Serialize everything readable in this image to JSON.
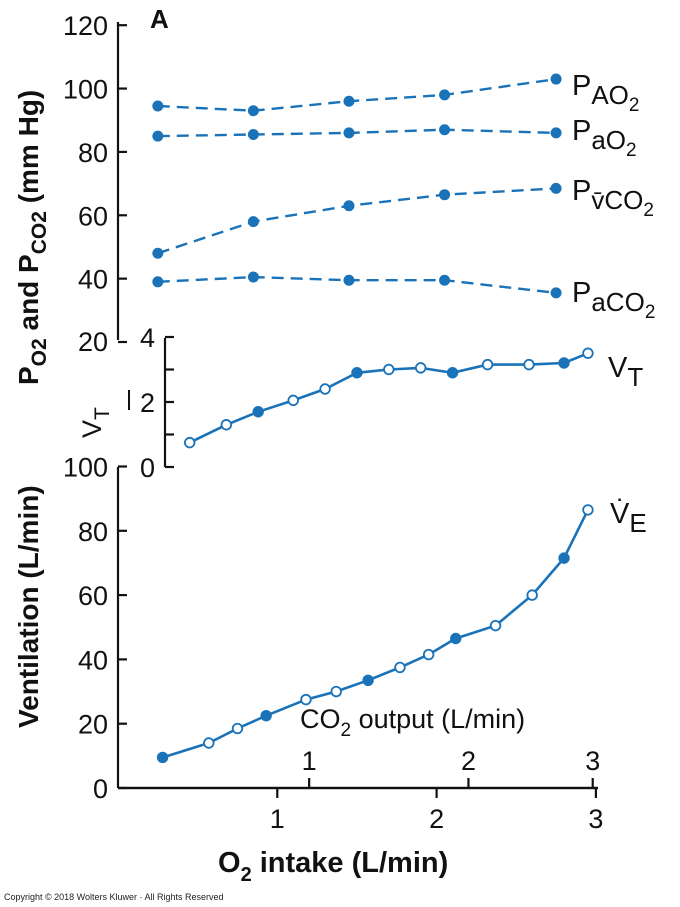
{
  "figure": {
    "panel_label": "A",
    "copyright": "Copyright © 2018 Wolters Kluwer · All Rights Reserved",
    "accent_color": "#1a73b8"
  },
  "chart_data": [
    {
      "type": "line",
      "name": "top-panel",
      "ylabel": "PO2 and PCO2 (mm Hg)",
      "ylabel_parts": [
        "P",
        "O",
        "2",
        " and P",
        "CO",
        "2",
        " (mm Hg)"
      ],
      "ylim": [
        20,
        120
      ],
      "yticks": [
        20,
        40,
        60,
        80,
        100,
        120
      ],
      "line_style": "dashed",
      "series": [
        {
          "name": "PAO2",
          "label_main": "P",
          "label_sub": "AO",
          "label_sub2": "2",
          "x": [
            0.25,
            0.85,
            1.45,
            2.05,
            2.75
          ],
          "y": [
            94.5,
            93,
            96,
            98,
            103
          ]
        },
        {
          "name": "PaO2",
          "label_main": "P",
          "label_sub": "aO",
          "label_sub2": "2",
          "x": [
            0.25,
            0.85,
            1.45,
            2.05,
            2.75
          ],
          "y": [
            85,
            85.5,
            86,
            87,
            86
          ]
        },
        {
          "name": "PvCO2",
          "label_main": "P",
          "label_sub": "v̄CO",
          "label_sub2": "2",
          "x": [
            0.25,
            0.85,
            1.45,
            2.05,
            2.75
          ],
          "y": [
            48,
            58,
            63,
            66.5,
            68.5
          ]
        },
        {
          "name": "PaCO2",
          "label_main": "P",
          "label_sub": "aCO",
          "label_sub2": "2",
          "x": [
            0.25,
            0.85,
            1.45,
            2.05,
            2.75
          ],
          "y": [
            39,
            40.5,
            39.5,
            39.5,
            35.5
          ]
        }
      ]
    },
    {
      "type": "line",
      "name": "tidal-volume-panel",
      "ylabel": "VT",
      "ylim": [
        0,
        4
      ],
      "yticks": [
        0,
        2,
        4
      ],
      "series": [
        {
          "name": "VT",
          "label_main": "V",
          "label_sub": "T",
          "x": [
            0.45,
            0.68,
            0.88,
            1.1,
            1.3,
            1.5,
            1.7,
            1.9,
            2.1,
            2.32,
            2.58,
            2.8,
            2.95
          ],
          "y": [
            0.75,
            1.3,
            1.7,
            2.05,
            2.4,
            2.9,
            3.0,
            3.05,
            2.9,
            3.15,
            3.15,
            3.2,
            3.5
          ],
          "filled": [
            false,
            false,
            true,
            false,
            false,
            true,
            false,
            false,
            true,
            false,
            false,
            true,
            false
          ]
        }
      ]
    },
    {
      "type": "line",
      "name": "ventilation-panel",
      "ylabel": "Ventilation (L/min)",
      "ylim": [
        0,
        100
      ],
      "yticks": [
        0,
        20,
        40,
        60,
        80,
        100
      ],
      "xlabel": "O2 intake (L/min)",
      "xlabel_parts": [
        "O",
        "2",
        " intake (L/min)"
      ],
      "xlim": [
        0,
        3
      ],
      "xticks": [
        1,
        2,
        3
      ],
      "secondary_axis": {
        "label_parts": [
          "CO",
          "2",
          " output (L/min)"
        ],
        "ticks": [
          "1",
          "2",
          "3"
        ],
        "tick_positions_o2": [
          1.2,
          2.2,
          2.98
        ]
      },
      "series": [
        {
          "name": "VE",
          "label_main": "V̇",
          "label_sub": "E",
          "x": [
            0.28,
            0.57,
            0.75,
            0.93,
            1.18,
            1.37,
            1.57,
            1.77,
            1.95,
            2.12,
            2.37,
            2.6,
            2.8,
            2.95
          ],
          "y": [
            9.5,
            14,
            18.5,
            22.5,
            27.5,
            30,
            33.5,
            37.5,
            41.5,
            46.5,
            50.5,
            60,
            71.5,
            86.5
          ],
          "filled": [
            true,
            false,
            false,
            true,
            false,
            false,
            true,
            false,
            false,
            true,
            false,
            false,
            true,
            false
          ]
        }
      ]
    }
  ]
}
